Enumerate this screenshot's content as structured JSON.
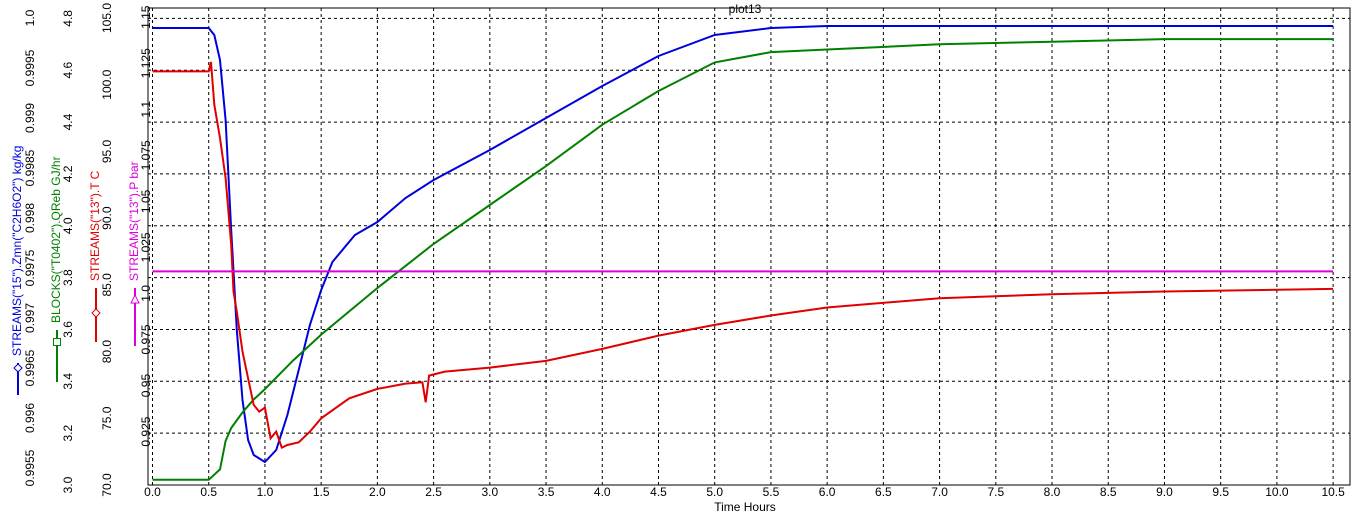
{
  "chart_data": {
    "type": "line",
    "title": "plot13",
    "x_label": "Time Hours",
    "xlim": [
      -0.04,
      10.65
    ],
    "xticks": [
      {
        "value": 0,
        "label": "0.0"
      },
      0.5,
      {
        "value": 1,
        "label": "1.0"
      },
      1.5,
      {
        "value": 2,
        "label": "2.0"
      },
      2.5,
      {
        "value": 3,
        "label": "3.0"
      },
      3.5,
      {
        "value": 4,
        "label": "4.0"
      },
      4.5,
      {
        "value": 5,
        "label": "5.0"
      },
      5.5,
      {
        "value": 6,
        "label": "6.0"
      },
      6.5,
      {
        "value": 7,
        "label": "7.0"
      },
      7.5,
      {
        "value": 8,
        "label": "8.0"
      },
      8.5,
      {
        "value": 9,
        "label": "9.0"
      },
      9.5,
      {
        "value": 10,
        "label": "10.0"
      },
      10.5
    ],
    "x_grid": true,
    "axes": {
      "y1": {
        "ylim": [
          0.99533,
          1.0001
        ],
        "yticks": [
          0.9955,
          0.996,
          0.9965,
          0.997,
          0.9975,
          0.998,
          0.9985,
          0.999,
          0.9995,
          {
            "value": 1,
            "label": "1.0"
          }
        ],
        "grid": false
      },
      "y2": {
        "ylim": [
          3.0,
          4.84
        ],
        "yticks": [
          {
            "value": 3,
            "label": "3.0"
          },
          3.2,
          3.4,
          3.6,
          3.8,
          {
            "value": 4,
            "label": "4.0"
          },
          4.2,
          4.4,
          4.6,
          4.8
        ],
        "grid": true
      },
      "y3": {
        "ylim": [
          70,
          105.75
        ],
        "yticks": [
          {
            "value": 70,
            "label": "70.0"
          },
          {
            "value": 75,
            "label": "75.0"
          },
          {
            "value": 80,
            "label": "80.0"
          },
          {
            "value": 85,
            "label": "85.0"
          },
          {
            "value": 90,
            "label": "90.0"
          },
          {
            "value": 95,
            "label": "95.0"
          },
          {
            "value": 100,
            "label": "100.0"
          },
          {
            "value": 105,
            "label": "105.0"
          }
        ],
        "grid": false
      },
      "y4": {
        "ylim": [
          0.896,
          1.155
        ],
        "yticks": [
          0.925,
          0.95,
          0.975,
          {
            "value": 1,
            "label": "1.0"
          },
          1.025,
          1.05,
          1.075,
          1.1,
          1.125,
          1.15
        ],
        "grid": false
      }
    },
    "series": [
      {
        "name": "STREAMS(\"15\").Zmn(\"C2H6O2\") kg/kg",
        "color": "#0000dd",
        "axis": "y1",
        "marker": "diamond",
        "x": [
          0,
          0.5,
          0.55,
          0.6,
          0.65,
          0.7,
          0.75,
          0.8,
          0.85,
          0.9,
          1.0,
          1.1,
          1.2,
          1.3,
          1.4,
          1.5,
          1.6,
          1.8,
          2.0,
          2.25,
          2.5,
          3.0,
          3.5,
          4.0,
          4.5,
          5.0,
          5.5,
          6.0,
          10.5
        ],
        "values": [
          0.9999,
          0.9999,
          0.99983,
          0.99958,
          0.99898,
          0.99788,
          0.99688,
          0.99618,
          0.99578,
          0.99563,
          0.99556,
          0.99568,
          0.99603,
          0.99648,
          0.99693,
          0.99728,
          0.99756,
          0.99783,
          0.99796,
          0.9982,
          0.99838,
          0.99868,
          0.999,
          0.99932,
          0.99962,
          0.99983,
          0.9999,
          0.99992,
          0.99992
        ]
      },
      {
        "name": "BLOCKS(\"T0402\").QReb GJ/hr",
        "color": "#008000",
        "axis": "y2",
        "marker": "square",
        "x": [
          0,
          0.5,
          0.6,
          0.65,
          0.7,
          0.8,
          0.9,
          1.0,
          1.25,
          1.5,
          2.0,
          2.5,
          3.0,
          3.5,
          4.0,
          4.5,
          5.0,
          5.5,
          6.0,
          7.0,
          8.0,
          9.0,
          10.5
        ],
        "values": [
          3.02,
          3.02,
          3.06,
          3.17,
          3.22,
          3.28,
          3.33,
          3.37,
          3.48,
          3.58,
          3.76,
          3.93,
          4.08,
          4.23,
          4.39,
          4.52,
          4.63,
          4.67,
          4.68,
          4.7,
          4.71,
          4.72,
          4.72
        ]
      },
      {
        "name": "STREAMS(\"13\").T C",
        "color": "#e00000",
        "axis": "y3",
        "marker": "diamond",
        "x": [
          0,
          0.5,
          0.52,
          0.55,
          0.6,
          0.65,
          0.7,
          0.72,
          0.75,
          0.8,
          0.85,
          0.9,
          0.95,
          1.0,
          1.05,
          1.1,
          1.15,
          1.2,
          1.3,
          1.4,
          1.5,
          1.75,
          2.0,
          2.25,
          2.4,
          2.43,
          2.46,
          2.6,
          3.0,
          3.5,
          4.0,
          4.5,
          5.0,
          5.5,
          6.0,
          7.0,
          8.0,
          9.0,
          10.5
        ],
        "values": [
          101.0,
          101.0,
          101.7,
          98.5,
          96.0,
          93.0,
          88.0,
          84.5,
          83.0,
          80.0,
          78.0,
          76.0,
          75.5,
          75.8,
          73.5,
          74.0,
          72.8,
          73.0,
          73.2,
          74.0,
          75.0,
          76.5,
          77.2,
          77.6,
          77.7,
          76.2,
          78.2,
          78.5,
          78.8,
          79.3,
          80.2,
          81.2,
          82.0,
          82.7,
          83.3,
          84.0,
          84.3,
          84.5,
          84.7
        ]
      },
      {
        "name": "STREAMS(\"13\").P bar",
        "color": "#dd00dd",
        "axis": "y4",
        "marker": "triangle",
        "x": [
          0,
          10.5
        ],
        "values": [
          1.012,
          1.012
        ]
      }
    ]
  }
}
